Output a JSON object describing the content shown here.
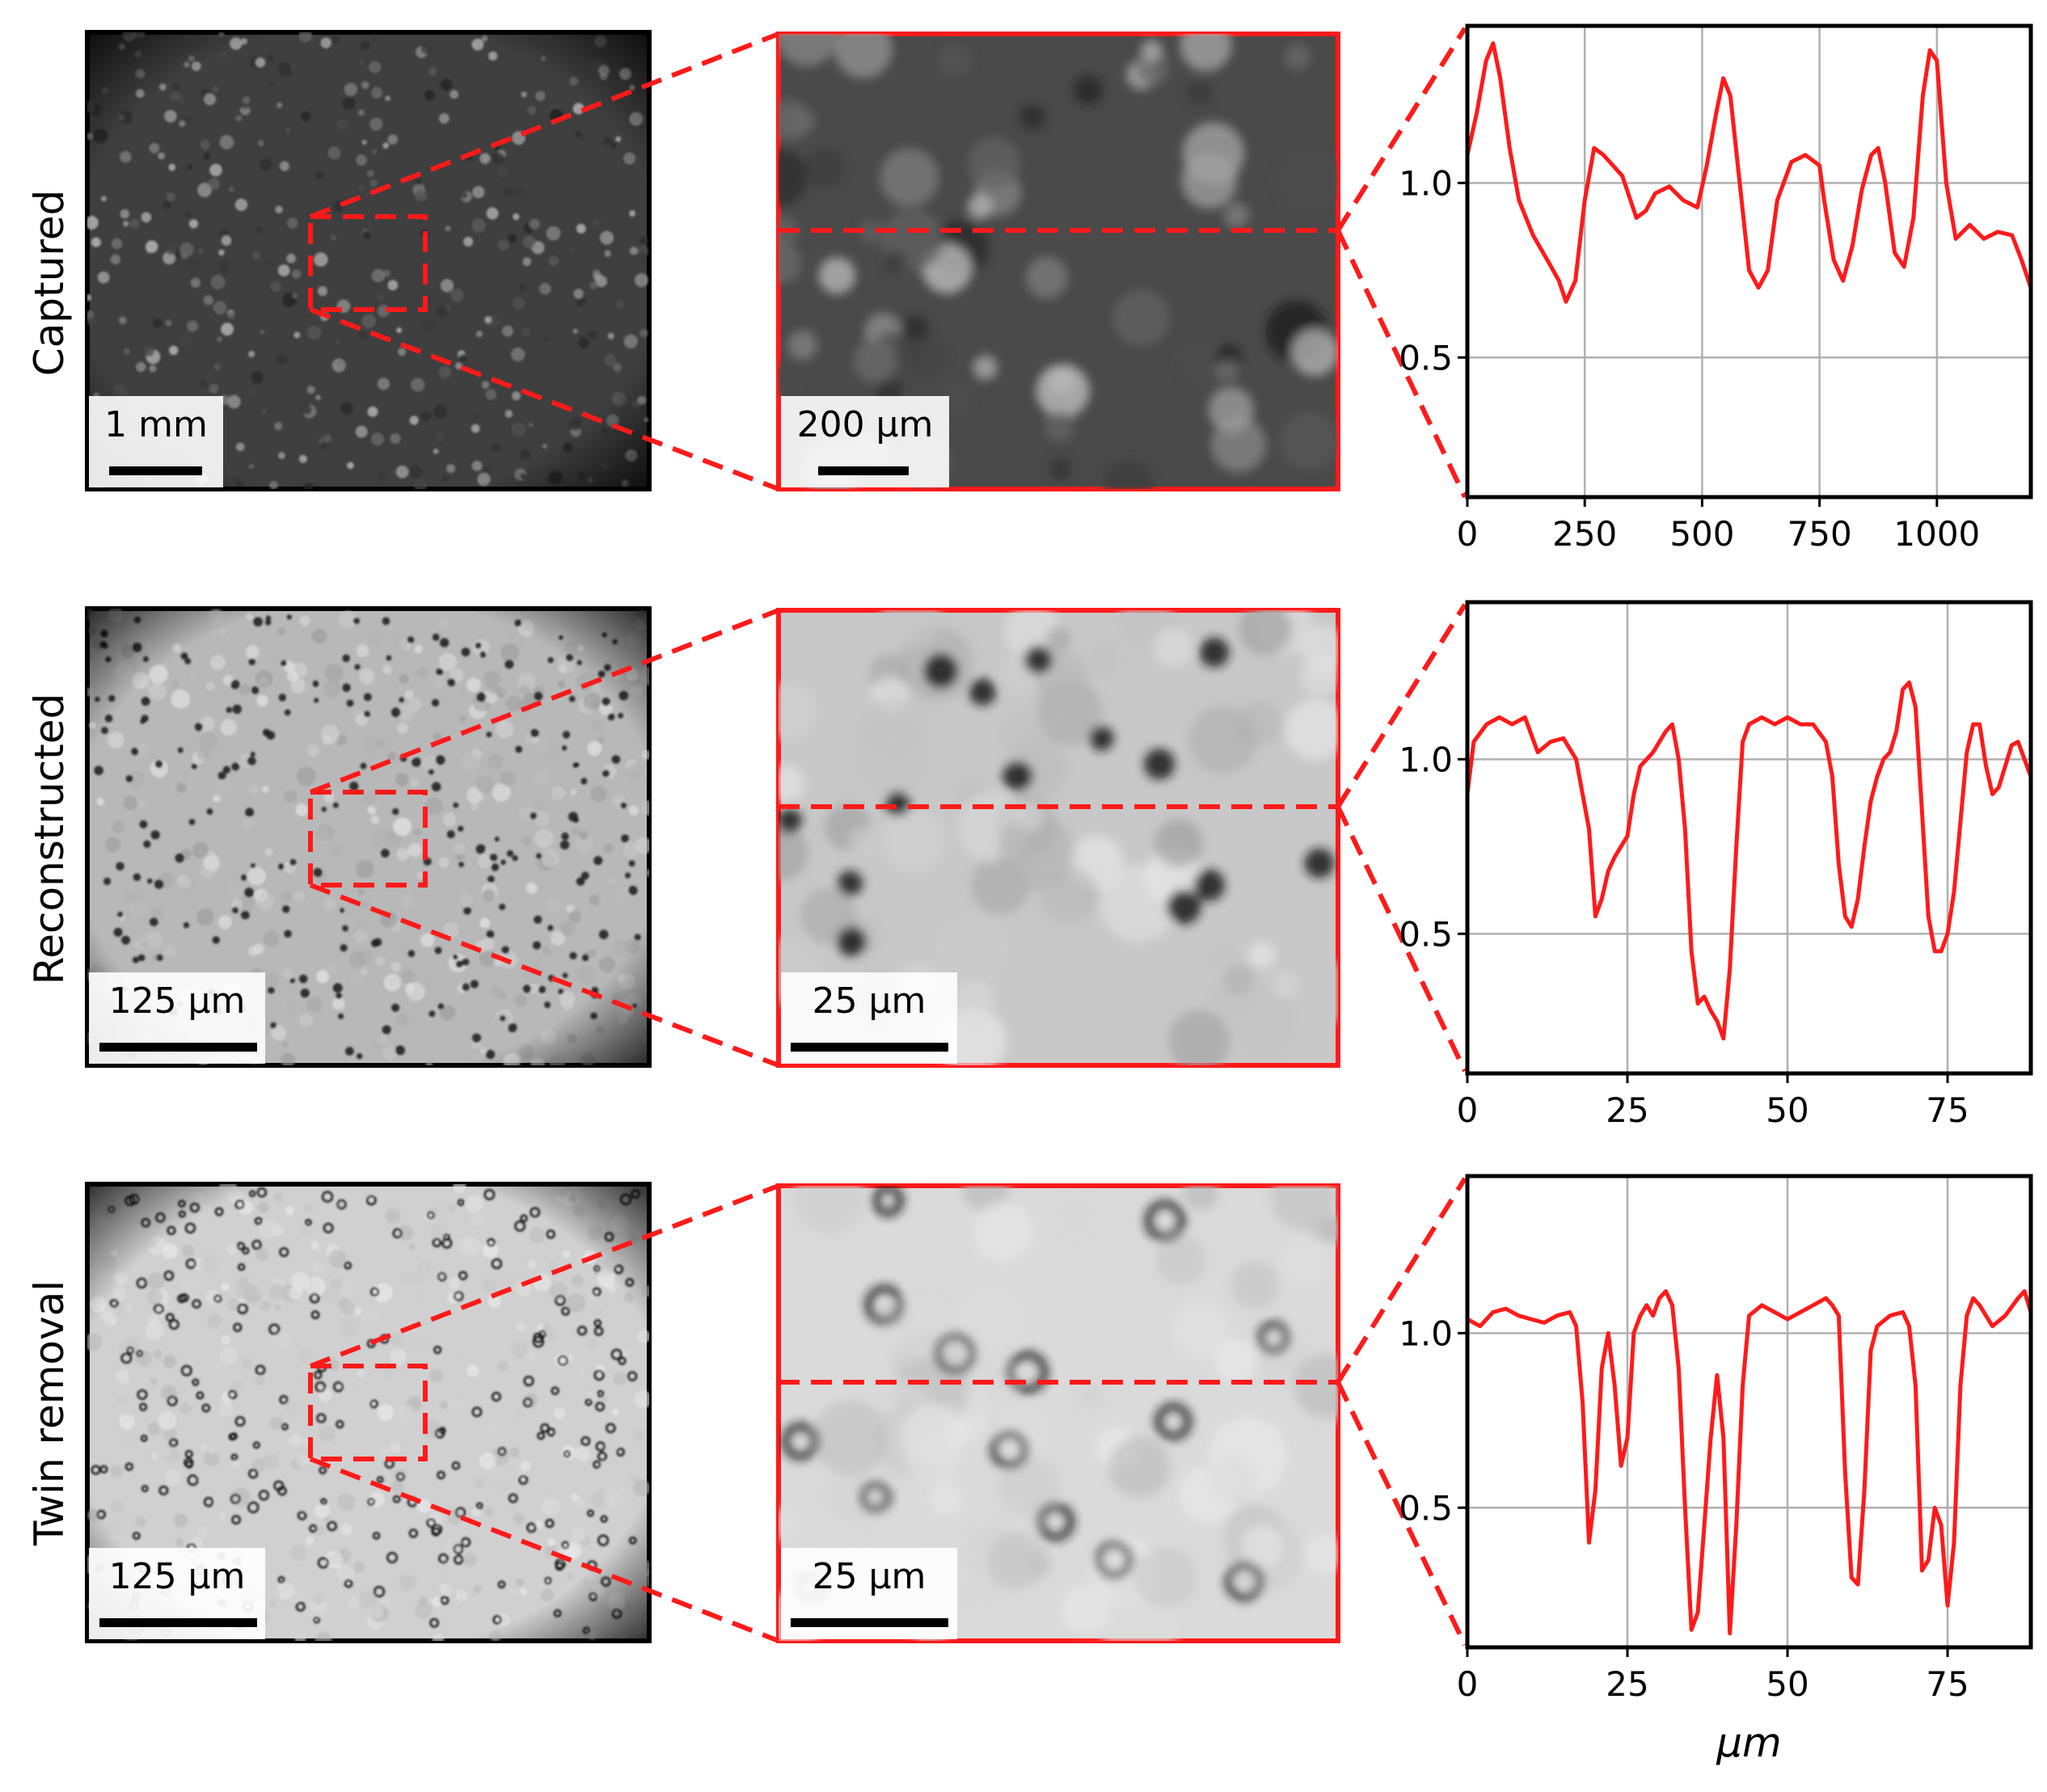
{
  "figure": {
    "accent_color": "#ff1a1a",
    "rows": [
      {
        "label": "Captured",
        "overview_scale": "1 mm",
        "zoom_scale": "200 µm",
        "texture": "captured"
      },
      {
        "label": "Reconstructed",
        "overview_scale": "125 µm",
        "zoom_scale": "25 µm",
        "texture": "reconstructed"
      },
      {
        "label": "Twin removal",
        "overview_scale": "125 µm",
        "zoom_scale": "25 µm",
        "texture": "twin"
      }
    ]
  },
  "chart_data": [
    {
      "type": "line",
      "x_ticks": [
        "0",
        "250",
        "500",
        "750",
        "1000"
      ],
      "x_tick_values": [
        0,
        250,
        500,
        750,
        1000
      ],
      "y_ticks": [
        "0.5",
        "1.0"
      ],
      "y_tick_values": [
        0.5,
        1.0
      ],
      "xlim": [
        0,
        1200
      ],
      "ylim": [
        0.1,
        1.45
      ],
      "grid": true,
      "xlabel": "",
      "series": [
        {
          "color": "#ff1a1a",
          "x": [
            0,
            20,
            40,
            55,
            70,
            90,
            110,
            140,
            170,
            195,
            210,
            230,
            250,
            270,
            290,
            310,
            330,
            360,
            380,
            400,
            430,
            460,
            490,
            510,
            530,
            545,
            560,
            580,
            600,
            620,
            640,
            660,
            690,
            720,
            750,
            760,
            780,
            800,
            820,
            840,
            860,
            875,
            890,
            910,
            930,
            950,
            970,
            985,
            1000,
            1020,
            1040,
            1070,
            1100,
            1130,
            1160,
            1180,
            1200
          ],
          "y": [
            1.08,
            1.2,
            1.35,
            1.4,
            1.3,
            1.1,
            0.95,
            0.85,
            0.78,
            0.72,
            0.66,
            0.72,
            0.95,
            1.1,
            1.08,
            1.05,
            1.02,
            0.9,
            0.92,
            0.97,
            0.99,
            0.95,
            0.93,
            1.05,
            1.2,
            1.3,
            1.25,
            1.0,
            0.75,
            0.7,
            0.75,
            0.95,
            1.06,
            1.08,
            1.05,
            0.95,
            0.78,
            0.72,
            0.82,
            0.98,
            1.08,
            1.1,
            1.0,
            0.8,
            0.76,
            0.9,
            1.25,
            1.38,
            1.35,
            1.0,
            0.84,
            0.88,
            0.84,
            0.86,
            0.85,
            0.78,
            0.7
          ]
        }
      ]
    },
    {
      "type": "line",
      "x_ticks": [
        "0",
        "25",
        "50",
        "75"
      ],
      "x_tick_values": [
        0,
        25,
        50,
        75
      ],
      "y_ticks": [
        "0.5",
        "1.0"
      ],
      "y_tick_values": [
        0.5,
        1.0
      ],
      "xlim": [
        0,
        88
      ],
      "ylim": [
        0.1,
        1.45
      ],
      "grid": true,
      "xlabel": "",
      "series": [
        {
          "color": "#ff1a1a",
          "x": [
            0,
            1,
            3,
            5,
            7,
            9,
            11,
            13,
            15,
            17,
            19,
            20,
            21,
            22,
            23,
            24,
            25,
            26,
            27,
            28,
            29,
            30,
            31,
            32,
            33,
            34,
            35,
            36,
            37,
            38,
            39,
            40,
            41,
            42,
            43,
            44,
            46,
            48,
            50,
            52,
            54,
            56,
            57,
            58,
            59,
            60,
            61,
            62,
            63,
            64,
            65,
            66,
            67,
            68,
            69,
            70,
            71,
            72,
            73,
            74,
            75,
            76,
            77,
            78,
            79,
            80,
            81,
            82,
            83,
            84,
            85,
            86,
            87,
            88
          ],
          "y": [
            0.9,
            1.05,
            1.1,
            1.12,
            1.1,
            1.12,
            1.02,
            1.05,
            1.06,
            1.0,
            0.8,
            0.55,
            0.6,
            0.68,
            0.72,
            0.75,
            0.78,
            0.9,
            0.98,
            1.0,
            1.02,
            1.05,
            1.08,
            1.1,
            1.0,
            0.8,
            0.45,
            0.3,
            0.32,
            0.28,
            0.25,
            0.2,
            0.4,
            0.75,
            1.05,
            1.1,
            1.12,
            1.1,
            1.12,
            1.1,
            1.1,
            1.05,
            0.95,
            0.7,
            0.55,
            0.52,
            0.6,
            0.75,
            0.88,
            0.95,
            1.0,
            1.02,
            1.08,
            1.2,
            1.22,
            1.15,
            0.85,
            0.55,
            0.45,
            0.45,
            0.5,
            0.62,
            0.82,
            1.02,
            1.1,
            1.1,
            0.98,
            0.9,
            0.92,
            0.98,
            1.04,
            1.05,
            1.0,
            0.95
          ]
        }
      ]
    },
    {
      "type": "line",
      "x_ticks": [
        "0",
        "25",
        "50",
        "75"
      ],
      "x_tick_values": [
        0,
        25,
        50,
        75
      ],
      "y_ticks": [
        "0.5",
        "1.0"
      ],
      "y_tick_values": [
        0.5,
        1.0
      ],
      "xlim": [
        0,
        88
      ],
      "ylim": [
        0.1,
        1.45
      ],
      "grid": true,
      "xlabel": "µm",
      "series": [
        {
          "color": "#ff1a1a",
          "x": [
            0,
            2,
            4,
            6,
            8,
            10,
            12,
            14,
            16,
            17,
            18,
            19,
            20,
            21,
            22,
            23,
            24,
            25,
            26,
            27,
            28,
            29,
            30,
            31,
            32,
            33,
            34,
            35,
            36,
            37,
            38,
            39,
            40,
            41,
            42,
            43,
            44,
            46,
            48,
            50,
            52,
            54,
            56,
            57,
            58,
            59,
            60,
            61,
            62,
            63,
            64,
            66,
            68,
            69,
            70,
            71,
            72,
            73,
            74,
            75,
            76,
            77,
            78,
            79,
            80,
            82,
            84,
            86,
            87,
            88
          ],
          "y": [
            1.04,
            1.02,
            1.06,
            1.07,
            1.05,
            1.04,
            1.03,
            1.05,
            1.06,
            1.02,
            0.8,
            0.4,
            0.55,
            0.9,
            1.0,
            0.85,
            0.62,
            0.7,
            1.0,
            1.05,
            1.08,
            1.05,
            1.1,
            1.12,
            1.08,
            0.9,
            0.5,
            0.15,
            0.2,
            0.45,
            0.7,
            0.88,
            0.7,
            0.14,
            0.45,
            0.85,
            1.05,
            1.08,
            1.06,
            1.04,
            1.06,
            1.08,
            1.1,
            1.08,
            1.05,
            0.6,
            0.3,
            0.28,
            0.55,
            0.95,
            1.02,
            1.05,
            1.06,
            1.02,
            0.85,
            0.32,
            0.35,
            0.5,
            0.45,
            0.22,
            0.4,
            0.85,
            1.05,
            1.1,
            1.08,
            1.02,
            1.05,
            1.1,
            1.12,
            1.06
          ]
        }
      ]
    }
  ]
}
